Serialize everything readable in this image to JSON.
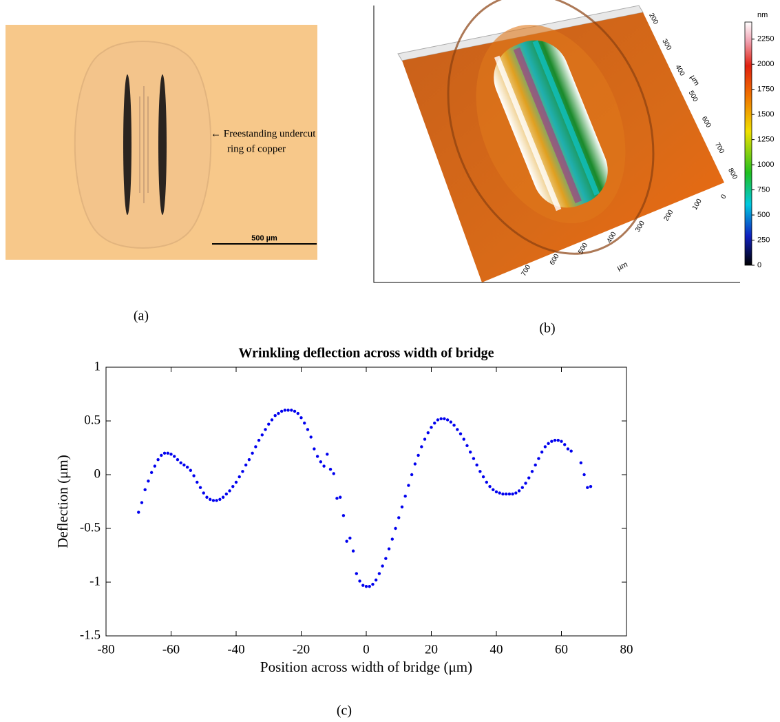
{
  "panel_a": {
    "annotation": [
      "← Freestanding undercut",
      "ring of copper"
    ],
    "scale_bar": "500 µm",
    "caption": "(a)"
  },
  "panel_b": {
    "colorbar": {
      "unit": "nm",
      "lim": [
        0,
        2420
      ],
      "ticks": [
        0,
        250,
        500,
        750,
        1000,
        1250,
        1500,
        1750,
        2000,
        2250
      ]
    },
    "right_axis_labels": [
      200,
      300,
      400,
      500,
      600,
      700,
      800
    ],
    "right_axis_unit": "µm",
    "front_axis_labels": [
      0,
      100,
      200,
      300,
      400,
      500,
      600,
      700
    ],
    "front_axis_unit": "µm",
    "caption": "(b)"
  },
  "chart_data": {
    "type": "scatter",
    "title": "Wrinkling deflection across width of bridge",
    "x_label": "Position across width of bridge (μm)",
    "y_label": "Deflection (μm)",
    "color": "#0000ee",
    "xlim": [
      -80,
      80
    ],
    "ylim": [
      -1.5,
      1
    ],
    "xticks": [
      -80,
      -60,
      -40,
      -20,
      0,
      20,
      40,
      60,
      80
    ],
    "yticks": [
      -1.5,
      -1,
      -0.5,
      0,
      0.5,
      1
    ],
    "x": [
      -70,
      -69,
      -68,
      -67,
      -66,
      -65,
      -64,
      -63,
      -62,
      -61,
      -60,
      -59,
      -58,
      -57,
      -56,
      -55,
      -54,
      -53,
      -52,
      -51,
      -50,
      -49,
      -48,
      -47,
      -46,
      -45,
      -44,
      -43,
      -42,
      -41,
      -40,
      -39,
      -38,
      -37,
      -36,
      -35,
      -34,
      -33,
      -32,
      -31,
      -30,
      -29,
      -28,
      -27,
      -26,
      -25,
      -24,
      -23,
      -22,
      -21,
      -20,
      -19,
      -18,
      -17,
      -16,
      -15,
      -14,
      -13,
      -12,
      -11,
      -10,
      -9,
      -8,
      -7,
      -6,
      -5,
      -4,
      -3,
      -2,
      -1,
      0,
      1,
      2,
      3,
      4,
      5,
      6,
      7,
      8,
      9,
      10,
      11,
      12,
      13,
      14,
      15,
      16,
      17,
      18,
      19,
      20,
      21,
      22,
      23,
      24,
      25,
      26,
      27,
      28,
      29,
      30,
      31,
      32,
      33,
      34,
      35,
      36,
      37,
      38,
      39,
      40,
      41,
      42,
      43,
      44,
      45,
      46,
      47,
      48,
      49,
      50,
      51,
      52,
      53,
      54,
      55,
      56,
      57,
      58,
      59,
      60,
      61,
      62,
      63,
      66,
      67,
      68,
      69
    ],
    "values": [
      -0.35,
      -0.26,
      -0.14,
      -0.06,
      0.02,
      0.08,
      0.14,
      0.18,
      0.2,
      0.2,
      0.19,
      0.17,
      0.14,
      0.11,
      0.09,
      0.07,
      0.04,
      -0.01,
      -0.07,
      -0.12,
      -0.17,
      -0.21,
      -0.23,
      -0.24,
      -0.24,
      -0.23,
      -0.21,
      -0.18,
      -0.15,
      -0.11,
      -0.07,
      -0.02,
      0.03,
      0.09,
      0.14,
      0.2,
      0.26,
      0.32,
      0.37,
      0.42,
      0.47,
      0.51,
      0.55,
      0.57,
      0.59,
      0.6,
      0.6,
      0.6,
      0.59,
      0.57,
      0.53,
      0.48,
      0.42,
      0.35,
      0.24,
      0.17,
      0.12,
      0.08,
      0.19,
      0.05,
      0.01,
      -0.22,
      -0.21,
      -0.38,
      -0.62,
      -0.59,
      -0.71,
      -0.92,
      -0.99,
      -1.03,
      -1.04,
      -1.04,
      -1.02,
      -0.98,
      -0.92,
      -0.85,
      -0.78,
      -0.69,
      -0.6,
      -0.5,
      -0.4,
      -0.3,
      -0.2,
      -0.1,
      0.0,
      0.1,
      0.18,
      0.26,
      0.33,
      0.39,
      0.44,
      0.48,
      0.51,
      0.52,
      0.52,
      0.51,
      0.49,
      0.46,
      0.42,
      0.38,
      0.33,
      0.27,
      0.21,
      0.15,
      0.09,
      0.03,
      -0.02,
      -0.07,
      -0.11,
      -0.14,
      -0.16,
      -0.17,
      -0.18,
      -0.18,
      -0.18,
      -0.18,
      -0.17,
      -0.15,
      -0.12,
      -0.08,
      -0.03,
      0.03,
      0.09,
      0.15,
      0.21,
      0.26,
      0.29,
      0.31,
      0.32,
      0.32,
      0.31,
      0.28,
      0.24,
      0.22,
      0.11,
      0.0,
      -0.12,
      -0.11
    ],
    "caption": "(c)"
  }
}
